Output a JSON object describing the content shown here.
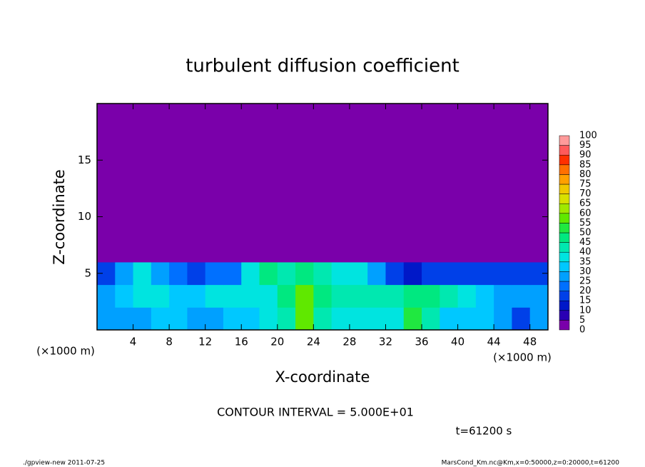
{
  "chart_data": {
    "type": "heatmap",
    "title": "turbulent diffusion coefficient",
    "x_label": "X-coordinate",
    "y_label": "Z-coordinate",
    "x_unit_label_left": "(×1000 m)",
    "x_unit_label_right": "(×1000 m)",
    "contour_note": "CONTOUR INTERVAL = 5.000E+01",
    "time_label": "t=61200 s",
    "footer_left": "./gpview-new  2011-07-25",
    "footer_right": "MarsCond_Km.nc@Km,x=0:50000,z=0:20000,t=61200",
    "xlim": [
      0,
      50
    ],
    "ylim": [
      0,
      20
    ],
    "xticks": [
      4,
      8,
      12,
      16,
      20,
      24,
      28,
      32,
      36,
      40,
      44,
      48
    ],
    "yticks": [
      5,
      10,
      15
    ],
    "x": [
      0,
      2,
      4,
      6,
      8,
      10,
      12,
      14,
      16,
      18,
      20,
      22,
      24,
      26,
      28,
      30,
      32,
      34,
      36,
      38,
      40,
      42,
      44,
      46,
      48,
      50
    ],
    "y": [
      0,
      2,
      4,
      6,
      20
    ],
    "z": [
      [
        25,
        25,
        25,
        30,
        30,
        25,
        25,
        30,
        30,
        35,
        40,
        55,
        40,
        35,
        35,
        35,
        35,
        50,
        40,
        30,
        30,
        30,
        25,
        15,
        25
      ],
      [
        25,
        30,
        35,
        35,
        30,
        30,
        35,
        35,
        35,
        35,
        45,
        55,
        45,
        40,
        40,
        40,
        40,
        45,
        45,
        40,
        35,
        30,
        25,
        25,
        25
      ],
      [
        15,
        25,
        35,
        25,
        20,
        15,
        20,
        20,
        35,
        45,
        40,
        45,
        40,
        35,
        35,
        25,
        15,
        10,
        15,
        15,
        15,
        15,
        15,
        15,
        15
      ],
      [
        0,
        0,
        0,
        0,
        0,
        0,
        0,
        0,
        0,
        0,
        0,
        0,
        0,
        0,
        0,
        0,
        0,
        0,
        0,
        0,
        0,
        0,
        0,
        0,
        0
      ]
    ],
    "levels": [
      0,
      5,
      10,
      15,
      20,
      25,
      30,
      35,
      40,
      45,
      50,
      55,
      60,
      65,
      70,
      75,
      80,
      85,
      90,
      95,
      100
    ],
    "colors": [
      "#7a00aa",
      "#2a00b4",
      "#0018c8",
      "#0040e8",
      "#0070ff",
      "#00a0ff",
      "#00c8ff",
      "#00e4e0",
      "#00e8b0",
      "#00e880",
      "#20e840",
      "#60e800",
      "#a0e800",
      "#d8e000",
      "#f0c800",
      "#ffa000",
      "#ff7000",
      "#ff3000",
      "#ff5a5a",
      "#ff9a9a"
    ]
  }
}
